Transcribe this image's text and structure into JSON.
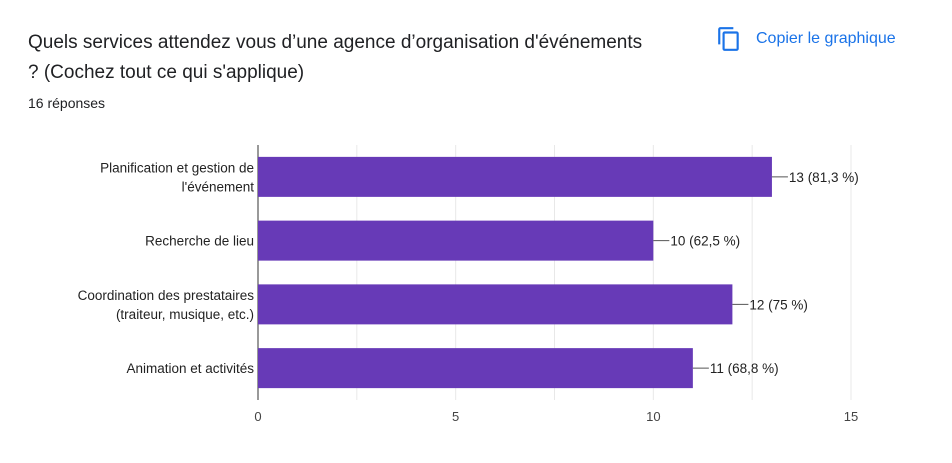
{
  "header": {
    "question_line1": "Quels services attendez vous d’une agence d’organisation d'événements",
    "question_line2": "? (Cochez tout ce qui s'applique)",
    "response_count": "16 réponses",
    "copy_label": "Copier le graphique",
    "copy_icon": "copy-icon"
  },
  "colors": {
    "bar": "#673ab7",
    "accent": "#1a73e8",
    "grid": "#e8e8e8",
    "axis": "#333333",
    "text": "#202124"
  },
  "chart_data": {
    "type": "bar",
    "orientation": "horizontal",
    "title": "Quels services attendez vous d’une agence d’organisation d'événements ? (Cochez tout ce qui s'applique)",
    "categories": [
      [
        "Planification et gestion de",
        "l'événement"
      ],
      [
        "Recherche de lieu"
      ],
      [
        "Coordination des prestataires",
        "(traiteur, musique, etc.)"
      ],
      [
        "Animation et activités"
      ]
    ],
    "values": [
      13,
      10,
      12,
      11
    ],
    "data_labels": [
      "13 (81,3 %)",
      "10 (62,5 %)",
      "12 (75 %)",
      "11 (68,8 %)"
    ],
    "xlim": [
      0,
      15
    ],
    "xticks": [
      0,
      5,
      10,
      15
    ],
    "grid": true,
    "legend": "none"
  }
}
